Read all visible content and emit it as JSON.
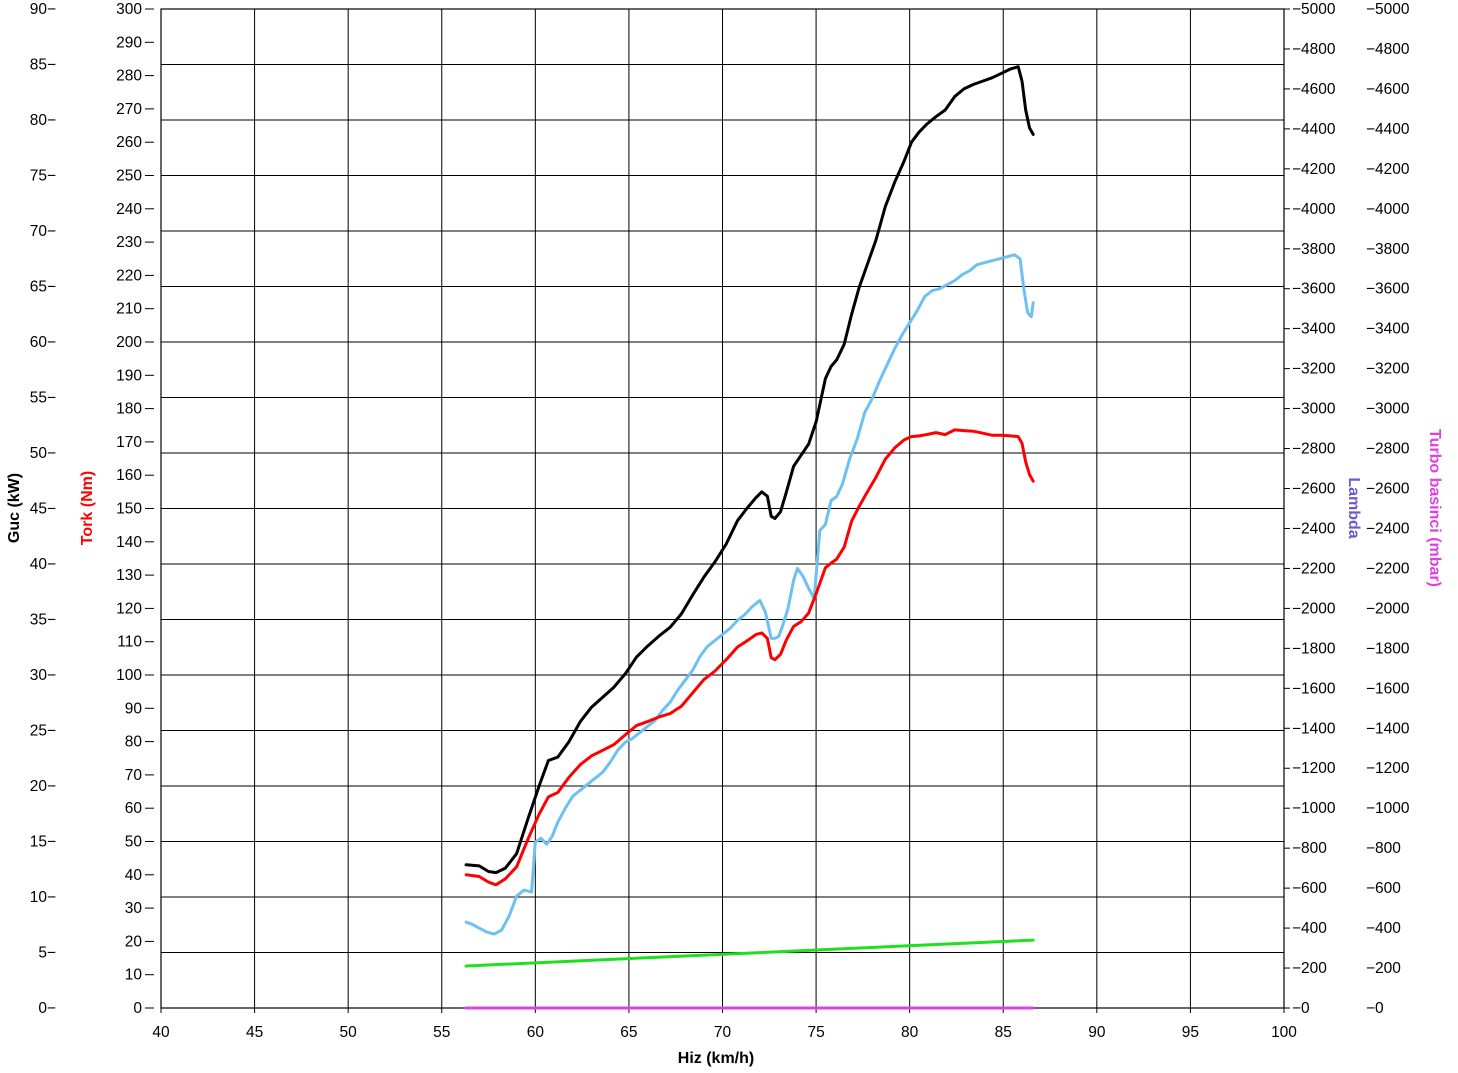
{
  "chart_data": {
    "type": "line",
    "xlabel": "Hiz (km/h)",
    "xlim": [
      40,
      100
    ],
    "xticks": [
      40,
      45,
      50,
      55,
      60,
      65,
      70,
      75,
      80,
      85,
      90,
      95,
      100
    ],
    "grid": true,
    "axes": {
      "power": {
        "label": "Guc (kW)",
        "color": "#000000",
        "range": [
          0,
          90
        ],
        "ticks": [
          0,
          5,
          10,
          15,
          20,
          25,
          30,
          35,
          40,
          45,
          50,
          55,
          60,
          65,
          70,
          75,
          80,
          85,
          90
        ]
      },
      "torque": {
        "label": "Tork (Nm)",
        "color": "#ff0000",
        "range": [
          0,
          300
        ],
        "ticks": [
          0,
          10,
          20,
          30,
          40,
          50,
          60,
          70,
          80,
          90,
          100,
          110,
          120,
          130,
          140,
          150,
          160,
          170,
          180,
          190,
          200,
          210,
          220,
          230,
          240,
          250,
          260,
          270,
          280,
          290,
          300
        ]
      },
      "lambda": {
        "label": "Lambda",
        "color": "#6a5acd",
        "range": [
          0,
          5000
        ],
        "ticks": [
          0,
          200,
          400,
          600,
          800,
          1000,
          1200,
          1400,
          1600,
          1800,
          2000,
          2200,
          2400,
          2600,
          2800,
          3000,
          3200,
          3400,
          3600,
          3800,
          4000,
          4200,
          4400,
          4600,
          4800,
          5000
        ]
      },
      "turbo": {
        "label": "Turbo basinci (mbar)",
        "color": "#e040e0",
        "range": [
          0,
          5000
        ],
        "ticks": [
          0,
          200,
          400,
          600,
          800,
          1000,
          1200,
          1400,
          1600,
          1800,
          2000,
          2200,
          2400,
          2600,
          2800,
          3000,
          3200,
          3400,
          3600,
          3800,
          4000,
          4200,
          4400,
          4600,
          4800,
          5000
        ]
      }
    },
    "series": [
      {
        "axis": "power",
        "color": "#000000",
        "x": [
          56.3,
          57.0,
          57.5,
          57.9,
          58.4,
          59.0,
          59.6,
          60.2,
          60.7,
          61.2,
          61.8,
          62.4,
          63.0,
          63.6,
          64.2,
          64.8,
          65.4,
          66.0,
          66.6,
          67.2,
          67.8,
          68.4,
          69.0,
          69.6,
          70.2,
          70.8,
          71.3,
          71.8,
          72.1,
          72.4,
          72.6,
          72.8,
          73.1,
          73.4,
          73.8,
          74.2,
          74.6,
          75.0,
          75.5,
          75.8,
          76.1,
          76.5,
          76.9,
          77.3,
          77.7,
          78.2,
          78.7,
          79.2,
          79.7,
          80.1,
          80.5,
          80.9,
          81.4,
          81.9,
          82.4,
          82.9,
          83.4,
          83.9,
          84.4,
          84.9,
          85.4,
          85.8,
          86.0,
          86.2,
          86.4,
          86.6
        ],
        "y": [
          12.9,
          12.8,
          12.3,
          12.2,
          12.6,
          13.9,
          17.0,
          20.0,
          22.3,
          22.6,
          24.0,
          25.8,
          27.1,
          28.0,
          28.9,
          30.1,
          31.6,
          32.6,
          33.5,
          34.3,
          35.5,
          37.2,
          38.8,
          40.2,
          41.8,
          43.9,
          45.0,
          46.0,
          46.5,
          46.1,
          44.3,
          44.1,
          44.7,
          46.4,
          48.8,
          49.8,
          50.8,
          52.8,
          56.7,
          57.8,
          58.4,
          59.8,
          62.5,
          64.9,
          66.8,
          69.2,
          72.2,
          74.4,
          76.3,
          78.0,
          78.9,
          79.6,
          80.3,
          80.9,
          82.1,
          82.8,
          83.2,
          83.5,
          83.8,
          84.2,
          84.6,
          84.8,
          83.5,
          80.9,
          79.3,
          78.7
        ]
      },
      {
        "axis": "torque",
        "color": "#ff0000",
        "x": [
          56.3,
          57.0,
          57.5,
          57.9,
          58.4,
          59.0,
          59.6,
          60.2,
          60.7,
          61.2,
          61.8,
          62.4,
          63.0,
          63.6,
          64.2,
          64.8,
          65.4,
          66.0,
          66.6,
          67.2,
          67.8,
          68.4,
          69.0,
          69.6,
          70.2,
          70.8,
          71.3,
          71.8,
          72.1,
          72.4,
          72.6,
          72.8,
          73.1,
          73.4,
          73.8,
          74.2,
          74.6,
          75.0,
          75.5,
          75.8,
          76.1,
          76.5,
          76.9,
          77.3,
          77.7,
          78.2,
          78.7,
          79.2,
          79.7,
          80.1,
          80.5,
          80.9,
          81.4,
          81.9,
          82.4,
          82.9,
          83.4,
          83.9,
          84.4,
          84.9,
          85.4,
          85.8,
          86.0,
          86.2,
          86.4,
          86.6
        ],
        "y": [
          40,
          39.5,
          37.8,
          37,
          38.8,
          42.4,
          50.6,
          58.2,
          63.4,
          64.7,
          69.3,
          73.1,
          75.7,
          77.4,
          79.1,
          82,
          84.8,
          86,
          87.4,
          88.4,
          90.6,
          94.6,
          98.6,
          101.2,
          104.6,
          108.4,
          110.2,
          112.2,
          112.6,
          111,
          105.2,
          104.6,
          106.2,
          110.4,
          114.6,
          116,
          118.6,
          124.4,
          132.2,
          133.6,
          134.8,
          138.4,
          146.2,
          150.6,
          154.6,
          159.4,
          164.8,
          168.2,
          170.6,
          171.6,
          171.8,
          172.2,
          172.8,
          172.2,
          173.6,
          173.4,
          173.2,
          172.6,
          172,
          172,
          171.8,
          171.6,
          169.6,
          164,
          160.2,
          158.2
        ]
      },
      {
        "axis": "lambda",
        "color": "#6ec0f2",
        "x": [
          56.3,
          56.6,
          57.0,
          57.4,
          57.8,
          58.2,
          58.6,
          59.0,
          59.4,
          59.8,
          60.0,
          60.3,
          60.6,
          60.9,
          61.2,
          61.6,
          62.0,
          62.4,
          62.8,
          63.2,
          63.6,
          64.0,
          64.4,
          64.8,
          65.2,
          65.6,
          66.0,
          66.4,
          66.8,
          67.2,
          67.6,
          68.0,
          68.4,
          68.8,
          69.2,
          69.6,
          70.0,
          70.4,
          70.8,
          71.2,
          71.6,
          72.0,
          72.3,
          72.6,
          72.8,
          73.0,
          73.2,
          73.5,
          73.8,
          74.0,
          74.3,
          74.6,
          74.9,
          75.2,
          75.5,
          75.8,
          76.1,
          76.4,
          76.8,
          77.2,
          77.6,
          78.0,
          78.4,
          78.8,
          79.2,
          79.6,
          80.0,
          80.4,
          80.8,
          81.2,
          81.6,
          82.0,
          82.4,
          82.8,
          83.2,
          83.6,
          84.0,
          84.4,
          84.8,
          85.2,
          85.6,
          85.9,
          86.1,
          86.3,
          86.5,
          86.6
        ],
        "y": [
          430,
          420,
          400,
          380,
          370,
          390,
          460,
          560,
          590,
          580,
          830,
          850,
          820,
          860,
          930,
          1000,
          1060,
          1090,
          1120,
          1150,
          1180,
          1230,
          1290,
          1330,
          1350,
          1380,
          1410,
          1440,
          1490,
          1530,
          1590,
          1640,
          1690,
          1760,
          1810,
          1840,
          1870,
          1900,
          1940,
          1970,
          2010,
          2040,
          1980,
          1850,
          1850,
          1860,
          1910,
          2000,
          2140,
          2200,
          2160,
          2100,
          2050,
          2390,
          2420,
          2540,
          2560,
          2620,
          2750,
          2850,
          2980,
          3050,
          3140,
          3220,
          3300,
          3370,
          3430,
          3490,
          3560,
          3590,
          3600,
          3620,
          3640,
          3670,
          3690,
          3720,
          3730,
          3740,
          3750,
          3760,
          3770,
          3750,
          3600,
          3480,
          3460,
          3530
        ]
      },
      {
        "axis": "turbo",
        "color": "#1fe01f",
        "x": [
          56.3,
          86.6
        ],
        "y": [
          210,
          340
        ]
      },
      {
        "axis": "turbo",
        "color": "#e040e0",
        "x": [
          56.3,
          86.6
        ],
        "y": [
          0,
          0
        ]
      }
    ]
  }
}
